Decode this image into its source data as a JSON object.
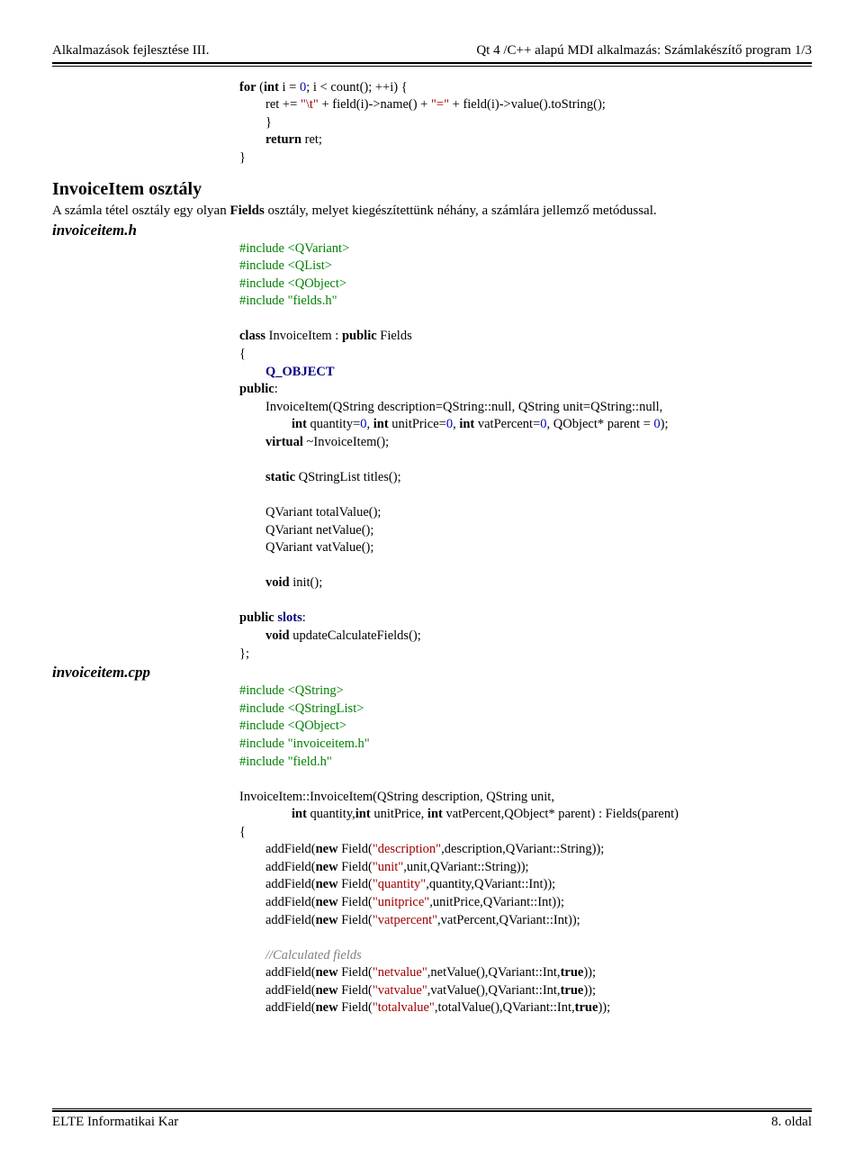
{
  "colors": {
    "text": "#000000",
    "keyword_bold": "#000000",
    "green": "#008000",
    "red": "#a00000",
    "blue": "#0000c0",
    "gray_italic": "#808080",
    "navy": "#000080",
    "background": "#ffffff",
    "rule": "#000000"
  },
  "typography": {
    "body_family": "Palatino / serif",
    "body_size_pt": 11,
    "heading_size_pt": 15,
    "filelabel_size_pt": 13
  },
  "header": {
    "left": "Alkalmazások fejlesztése III.",
    "right": "Qt 4 /C++ alapú MDI alkalmazás: Számlakészítő program 1/3"
  },
  "footer": {
    "left": "ELTE Informatikai Kar",
    "right": "8. oldal"
  },
  "section1_heading": "InvoiceItem osztály",
  "section1_text_a": "A számla tétel osztály egy olyan ",
  "section1_text_bold": "Fields",
  "section1_text_b": " osztály, melyet kiegészítettünk néhány, a számlára jellemző metódussal.",
  "file1": "invoiceitem.h",
  "file2": "invoiceitem.cpp",
  "code_top": {
    "for_kw": "for",
    "for_rest_a": " (",
    "int1": "int",
    "for_rest_b": " i = ",
    "zero1": "0",
    "for_rest_c": "; i < count(); ++i) {",
    "line2a": "        ret += ",
    "str1": "\"\\t\"",
    "line2b": " + field(i)->name() + ",
    "str2": "\"=\"",
    "line2c": " + field(i)->value().toString();",
    "line3": "}",
    "return_kw": "return",
    "line4_rest": " ret;",
    "line5": "}"
  },
  "code_h": {
    "inc1a": "#include ",
    "inc1b": "<QVariant>",
    "inc2a": "#include ",
    "inc2b": "<QList>",
    "inc3a": "#include ",
    "inc3b": "<QObject>",
    "inc4a": "#include ",
    "inc4b": "\"fields.h\"",
    "cls1": "class",
    "cls2": " InvoiceItem : ",
    "cls3": "public",
    "cls4": " Fields",
    "brace_open": "{",
    "qobj": "Q_OBJECT",
    "pub": "public",
    "colon": ":",
    "ctor1": "        InvoiceItem(QString description=QString::null, QString unit=QString::null,",
    "ctor2a": "                ",
    "int_kw": "int",
    "ctor2b": " quantity=",
    "z1": "0",
    "ctor2c": ", ",
    "ctor2d": " unitPrice=",
    "z2": "0",
    "ctor2e": ", ",
    "ctor2f": " vatPercent=",
    "z3": "0",
    "ctor2g": ", QObject* parent = ",
    "z4": "0",
    "ctor2h": ");",
    "virt": "virtual",
    "dtor": " ~InvoiceItem();",
    "stat": "static",
    "titles": " QStringList titles();",
    "tv": "        QVariant totalValue();",
    "nv": "        QVariant netValue();",
    "vv": "        QVariant vatValue();",
    "void_kw": "void",
    "init": " init();",
    "pub2": "public",
    "slots": "slots",
    "upd": " updateCalculateFields();",
    "brace_close": "};"
  },
  "code_cpp": {
    "inc1a": "#include ",
    "inc1b": "<QString>",
    "inc2a": "#include ",
    "inc2b": "<QStringList>",
    "inc3a": "#include ",
    "inc3b": "<QObject>",
    "inc4a": "#include ",
    "inc4b": "\"invoiceitem.h\"",
    "inc5a": "#include ",
    "inc5b": "\"field.h\"",
    "ctor_l1": "InvoiceItem::InvoiceItem(QString description, QString unit,",
    "ctor_l2a": "                ",
    "int_kw": "int",
    "ctor_l2b": " quantity,",
    "ctor_l2c": " unitPrice, ",
    "ctor_l2d": " vatPercent,QObject* parent) : Fields(parent)",
    "brace": "{",
    "af1a": "        addField(",
    "new_kw": "new",
    "af1b": " Field(",
    "s1": "\"description\"",
    "af1c": ",description,QVariant::String));",
    "af2b": " Field(",
    "s2": "\"unit\"",
    "af2c": ",unit,QVariant::String));",
    "af3b": " Field(",
    "s3": "\"quantity\"",
    "af3c": ",quantity,QVariant::Int));",
    "af4b": " Field(",
    "s4": "\"unitprice\"",
    "af4c": ",unitPrice,QVariant::Int));",
    "af5b": " Field(",
    "s5": "\"vatpercent\"",
    "af5c": ",vatPercent,QVariant::Int));",
    "comment": "//Calculated fields",
    "af6b": " Field(",
    "s6": "\"netvalue\"",
    "af6c": ",netValue(),QVariant::Int,",
    "true_kw": "true",
    "af6d": "));",
    "af7b": " Field(",
    "s7": "\"vatvalue\"",
    "af7c": ",vatValue(),QVariant::Int,",
    "af8b": " Field(",
    "s8": "\"totalvalue\"",
    "af8c": ",totalValue(),QVariant::Int,"
  }
}
